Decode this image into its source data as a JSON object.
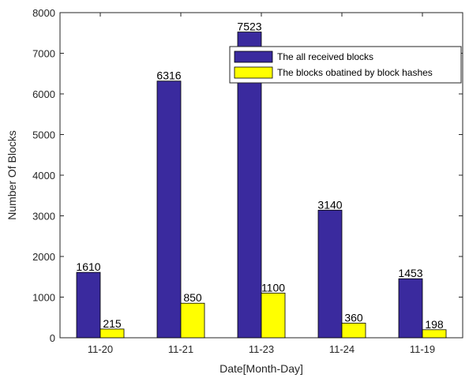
{
  "chart_data": {
    "type": "bar",
    "categories": [
      "11-20",
      "11-21",
      "11-23",
      "11-24",
      "11-19"
    ],
    "series": [
      {
        "name": "The all received blocks",
        "values": [
          1610,
          6316,
          7523,
          3140,
          1453
        ],
        "color": "#3a2a9e"
      },
      {
        "name": "The blocks obatined by block hashes",
        "values": [
          215,
          850,
          1100,
          360,
          198
        ],
        "color": "#ffff00"
      }
    ],
    "title": "",
    "xlabel": "Date[Month-Day]",
    "ylabel": "Number Of Blocks",
    "ylim": [
      0,
      8000
    ],
    "yticks": [
      0,
      1000,
      2000,
      3000,
      4000,
      5000,
      6000,
      7000,
      8000
    ],
    "grid": false,
    "legend_position": "top-right",
    "show_data_labels": true
  }
}
